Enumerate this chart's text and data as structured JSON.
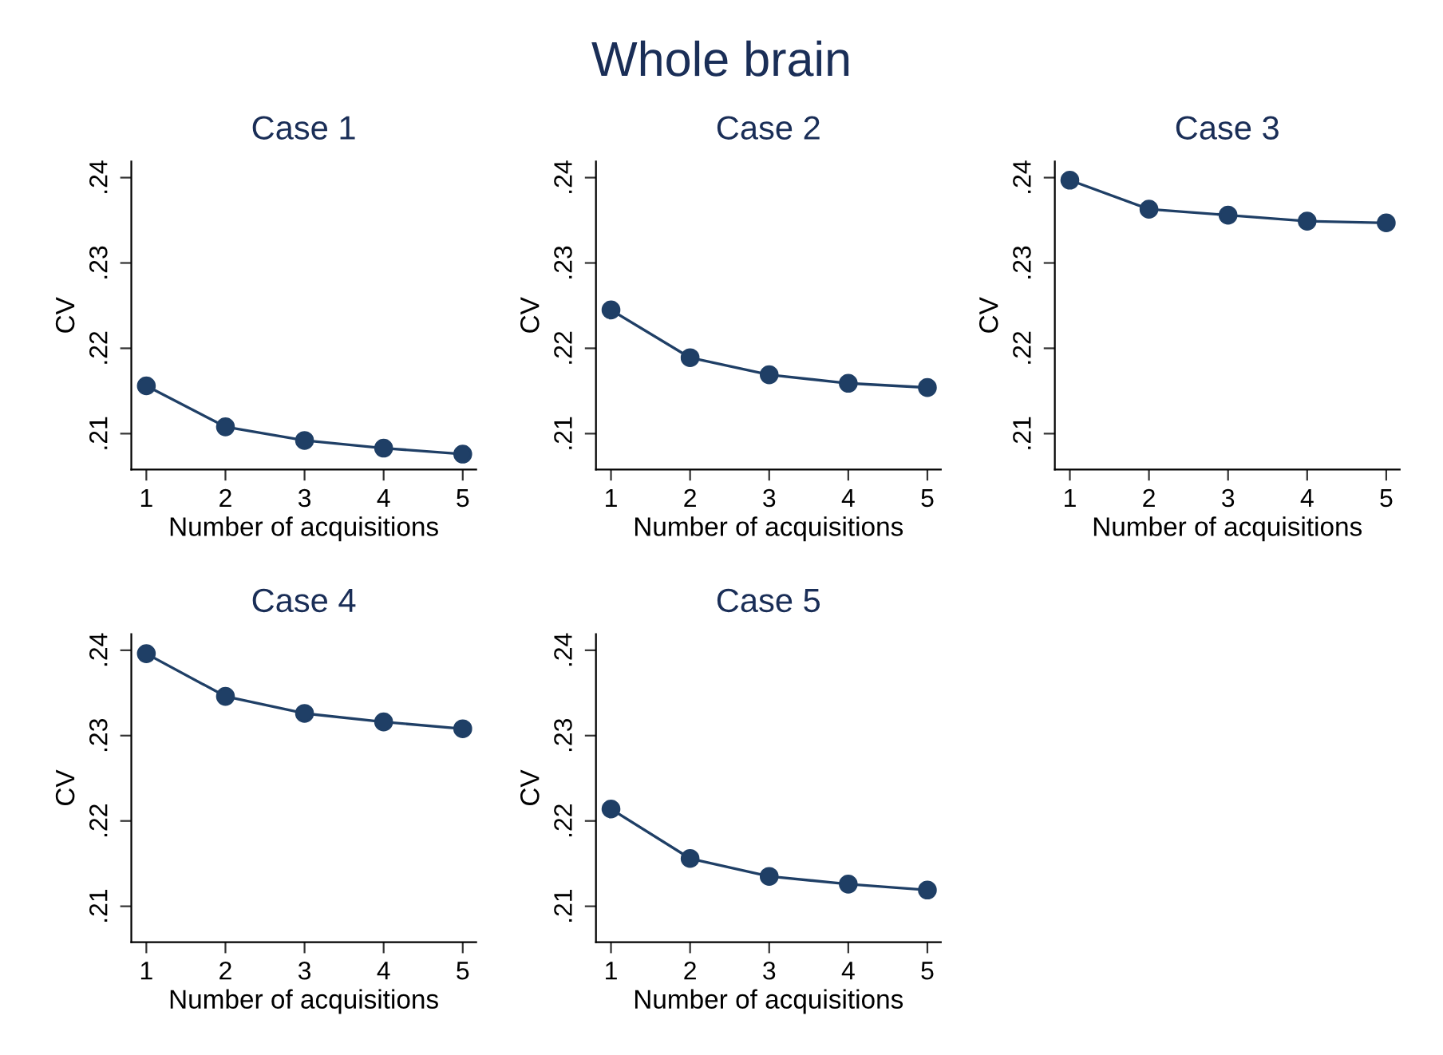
{
  "chart_data": [
    {
      "type": "line",
      "title": "Case 1",
      "xlabel": "Number of acquisitions",
      "ylabel": "CV",
      "x": [
        1,
        2,
        3,
        4,
        5
      ],
      "series": [
        {
          "color": "#1f3f66",
          "values": [
            0.2156,
            0.2108,
            0.2092,
            0.2083,
            0.2076
          ]
        }
      ],
      "xlim": [
        0.81,
        5.17
      ],
      "xticks": [
        1,
        2,
        3,
        4,
        5
      ],
      "ylim": [
        0.2058,
        0.2419
      ],
      "yticks": [
        {
          "value": 0.21,
          "label": ".21"
        },
        {
          "value": 0.22,
          "label": ".22"
        },
        {
          "value": 0.23,
          "label": ".23"
        },
        {
          "value": 0.24,
          "label": ".24"
        }
      ],
      "marker": "circle",
      "grid": false,
      "annotations": [
        "Whole brain"
      ]
    },
    {
      "type": "line",
      "title": "Case 2",
      "xlabel": "Number of acquisitions",
      "ylabel": "CV",
      "x": [
        1,
        2,
        3,
        4,
        5
      ],
      "series": [
        {
          "color": "#1f3f66",
          "values": [
            0.2245,
            0.2189,
            0.2169,
            0.2159,
            0.2154
          ]
        }
      ],
      "xlim": [
        0.81,
        5.17
      ],
      "xticks": [
        1,
        2,
        3,
        4,
        5
      ],
      "ylim": [
        0.2058,
        0.2419
      ],
      "yticks": [
        {
          "value": 0.21,
          "label": ".21"
        },
        {
          "value": 0.22,
          "label": ".22"
        },
        {
          "value": 0.23,
          "label": ".23"
        },
        {
          "value": 0.24,
          "label": ".24"
        }
      ],
      "marker": "circle",
      "grid": false
    },
    {
      "type": "line",
      "title": "Case 3",
      "xlabel": "Number of acquisitions",
      "ylabel": "CV",
      "x": [
        1,
        2,
        3,
        4,
        5
      ],
      "series": [
        {
          "color": "#1f3f66",
          "values": [
            0.2397,
            0.2363,
            0.2356,
            0.2349,
            0.2347
          ]
        }
      ],
      "xlim": [
        0.81,
        5.17
      ],
      "xticks": [
        1,
        2,
        3,
        4,
        5
      ],
      "ylim": [
        0.2058,
        0.2419
      ],
      "yticks": [
        {
          "value": 0.21,
          "label": ".21"
        },
        {
          "value": 0.22,
          "label": ".22"
        },
        {
          "value": 0.23,
          "label": ".23"
        },
        {
          "value": 0.24,
          "label": ".24"
        }
      ],
      "marker": "circle",
      "grid": false
    },
    {
      "type": "line",
      "title": "Case 4",
      "xlabel": "Number of acquisitions",
      "ylabel": "CV",
      "x": [
        1,
        2,
        3,
        4,
        5
      ],
      "series": [
        {
          "color": "#1f3f66",
          "values": [
            0.2396,
            0.2346,
            0.2326,
            0.2316,
            0.2308
          ]
        }
      ],
      "xlim": [
        0.81,
        5.17
      ],
      "xticks": [
        1,
        2,
        3,
        4,
        5
      ],
      "ylim": [
        0.2058,
        0.2419
      ],
      "yticks": [
        {
          "value": 0.21,
          "label": ".21"
        },
        {
          "value": 0.22,
          "label": ".22"
        },
        {
          "value": 0.23,
          "label": ".23"
        },
        {
          "value": 0.24,
          "label": ".24"
        }
      ],
      "marker": "circle",
      "grid": false
    },
    {
      "type": "line",
      "title": "Case 5",
      "xlabel": "Number of acquisitions",
      "ylabel": "CV",
      "x": [
        1,
        2,
        3,
        4,
        5
      ],
      "series": [
        {
          "color": "#1f3f66",
          "values": [
            0.2214,
            0.2156,
            0.2135,
            0.2126,
            0.2119
          ]
        }
      ],
      "xlim": [
        0.81,
        5.17
      ],
      "xticks": [
        1,
        2,
        3,
        4,
        5
      ],
      "ylim": [
        0.2058,
        0.2419
      ],
      "yticks": [
        {
          "value": 0.21,
          "label": ".21"
        },
        {
          "value": 0.22,
          "label": ".22"
        },
        {
          "value": 0.23,
          "label": ".23"
        },
        {
          "value": 0.24,
          "label": ".24"
        }
      ],
      "marker": "circle",
      "grid": false
    }
  ]
}
